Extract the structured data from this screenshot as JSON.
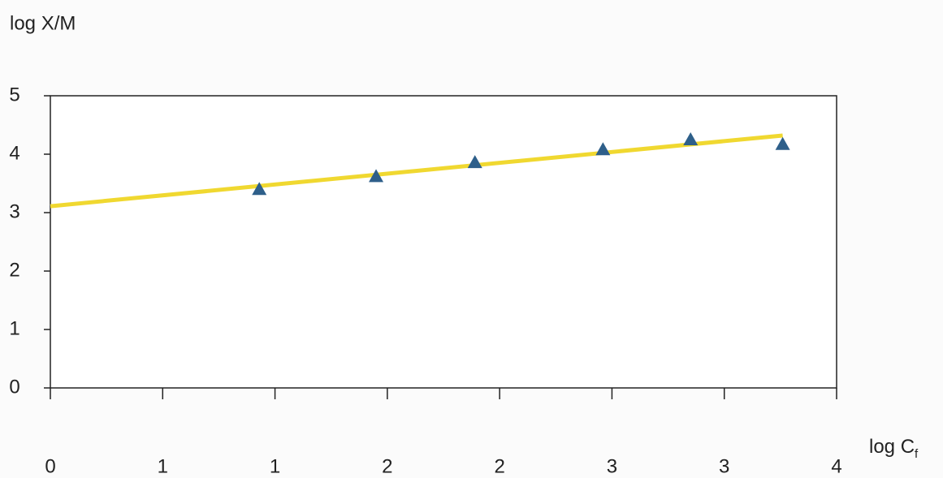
{
  "chart_data": {
    "type": "scatter",
    "y_label": "log X/M",
    "x_label": {
      "text": "log C",
      "subscript": "f"
    },
    "xlim": [
      0,
      3.5
    ],
    "xticks": [
      0,
      {
        "value": 0.5,
        "label": "1"
      },
      1,
      {
        "value": 1.5,
        "label": "2"
      },
      2,
      {
        "value": 2.5,
        "label": "3"
      },
      3,
      {
        "value": 3.5,
        "label": "4"
      }
    ],
    "ylim": [
      0,
      5
    ],
    "yticks": [
      0,
      1,
      2,
      3,
      4,
      5
    ],
    "series": [
      {
        "kind": "points",
        "color": "#2e5f8a",
        "x": [
          0.93,
          1.45,
          1.89,
          2.46,
          2.85,
          3.26
        ],
        "values": [
          3.4,
          3.62,
          3.86,
          4.08,
          4.25,
          4.17
        ]
      },
      {
        "kind": "trendline",
        "color": "#f0d830",
        "x": [
          0,
          3.26
        ],
        "values": [
          3.11,
          4.32
        ]
      }
    ]
  }
}
